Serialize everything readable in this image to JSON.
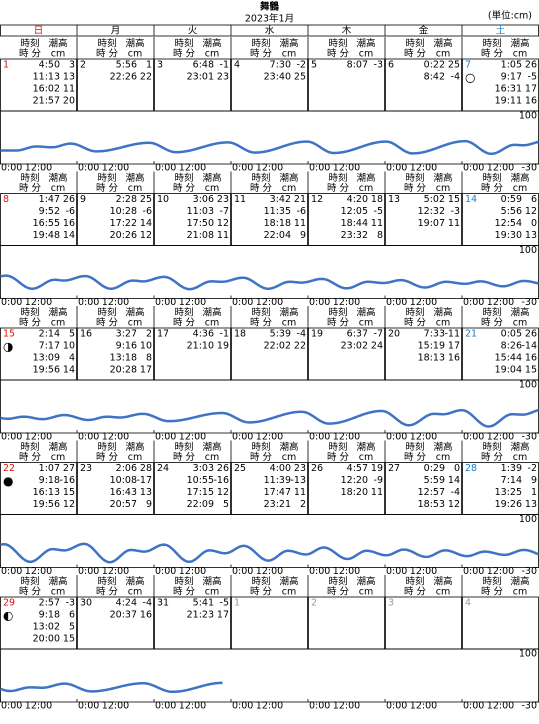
{
  "header": {
    "title": "舞鶴",
    "subtitle": "2023年1月",
    "unit": "(単位:cm)"
  },
  "weekdays": [
    "日",
    "月",
    "火",
    "水",
    "木",
    "金",
    "土"
  ],
  "labels": {
    "time": "時刻",
    "height": "潮高",
    "hm": "時 分",
    "cm": "cm"
  },
  "graph": {
    "ylim": [
      -30,
      100
    ],
    "yticks": [
      -30,
      100
    ],
    "xtick_labels": [
      "0:00",
      "12:00"
    ],
    "color": "#3f73c6"
  },
  "days": [
    {
      "day": 1,
      "moon": null,
      "tides": [
        {
          "time": "4:50",
          "height": 3
        },
        {
          "time": "11:13",
          "height": 13
        },
        {
          "time": "16:02",
          "height": 11
        },
        {
          "time": "21:57",
          "height": 20
        }
      ]
    },
    {
      "day": 2,
      "moon": null,
      "tides": [
        {
          "time": "5:56",
          "height": 1
        },
        {
          "time": "22:26",
          "height": 22
        }
      ]
    },
    {
      "day": 3,
      "moon": null,
      "tides": [
        {
          "time": "6:48",
          "height": -1
        },
        {
          "time": "23:01",
          "height": 23
        }
      ]
    },
    {
      "day": 4,
      "moon": null,
      "tides": [
        {
          "time": "7:30",
          "height": -2
        },
        {
          "time": "23:40",
          "height": 25
        }
      ]
    },
    {
      "day": 5,
      "moon": null,
      "tides": [
        {
          "time": "8:07",
          "height": -3
        }
      ]
    },
    {
      "day": 6,
      "moon": null,
      "tides": [
        {
          "time": "0:22",
          "height": 25
        },
        {
          "time": "8:42",
          "height": -4
        }
      ]
    },
    {
      "day": 7,
      "moon": "○",
      "tides": [
        {
          "time": "1:05",
          "height": 26
        },
        {
          "time": "9:17",
          "height": -5
        },
        {
          "time": "16:31",
          "height": 17
        },
        {
          "time": "19:11",
          "height": 16
        }
      ]
    },
    {
      "day": 8,
      "moon": null,
      "tides": [
        {
          "time": "1:47",
          "height": 26
        },
        {
          "time": "9:52",
          "height": -6
        },
        {
          "time": "16:55",
          "height": 16
        },
        {
          "time": "19:48",
          "height": 14
        }
      ]
    },
    {
      "day": 9,
      "moon": null,
      "tides": [
        {
          "time": "2:28",
          "height": 25
        },
        {
          "time": "10:28",
          "height": -6
        },
        {
          "time": "17:22",
          "height": 14
        },
        {
          "time": "20:26",
          "height": 12
        }
      ]
    },
    {
      "day": 10,
      "moon": null,
      "tides": [
        {
          "time": "3:06",
          "height": 23
        },
        {
          "time": "11:03",
          "height": -7
        },
        {
          "time": "17:50",
          "height": 12
        },
        {
          "time": "21:08",
          "height": 11
        }
      ]
    },
    {
      "day": 11,
      "moon": null,
      "tides": [
        {
          "time": "3:42",
          "height": 21
        },
        {
          "time": "11:35",
          "height": -6
        },
        {
          "time": "18:18",
          "height": 11
        },
        {
          "time": "22:04",
          "height": 9
        }
      ]
    },
    {
      "day": 12,
      "moon": null,
      "tides": [
        {
          "time": "4:20",
          "height": 18
        },
        {
          "time": "12:05",
          "height": -5
        },
        {
          "time": "18:44",
          "height": 11
        },
        {
          "time": "23:32",
          "height": 8
        }
      ]
    },
    {
      "day": 13,
      "moon": null,
      "tides": [
        {
          "time": "5:02",
          "height": 15
        },
        {
          "time": "12:32",
          "height": -3
        },
        {
          "time": "19:07",
          "height": 11
        }
      ]
    },
    {
      "day": 14,
      "moon": null,
      "tides": [
        {
          "time": "0:59",
          "height": 6
        },
        {
          "time": "5:56",
          "height": 12
        },
        {
          "time": "12:54",
          "height": 0
        },
        {
          "time": "19:30",
          "height": 13
        }
      ]
    },
    {
      "day": 15,
      "moon": "◑",
      "tides": [
        {
          "time": "2:14",
          "height": 5
        },
        {
          "time": "7:17",
          "height": 10
        },
        {
          "time": "13:09",
          "height": 4
        },
        {
          "time": "19:56",
          "height": 14
        }
      ]
    },
    {
      "day": 16,
      "moon": null,
      "tides": [
        {
          "time": "3:27",
          "height": 2
        },
        {
          "time": "9:16",
          "height": 10
        },
        {
          "time": "13:18",
          "height": 8
        },
        {
          "time": "20:28",
          "height": 17
        }
      ]
    },
    {
      "day": 17,
      "moon": null,
      "tides": [
        {
          "time": "4:36",
          "height": -1
        },
        {
          "time": "21:10",
          "height": 19
        }
      ]
    },
    {
      "day": 18,
      "moon": null,
      "tides": [
        {
          "time": "5:39",
          "height": -4
        },
        {
          "time": "22:02",
          "height": 22
        }
      ]
    },
    {
      "day": 19,
      "moon": null,
      "tides": [
        {
          "time": "6:37",
          "height": -7
        },
        {
          "time": "23:02",
          "height": 24
        }
      ]
    },
    {
      "day": 20,
      "moon": null,
      "tides": [
        {
          "time": "7:33",
          "height": -11
        },
        {
          "time": "15:19",
          "height": 17
        },
        {
          "time": "18:13",
          "height": 16
        }
      ]
    },
    {
      "day": 21,
      "moon": null,
      "tides": [
        {
          "time": "0:05",
          "height": 26
        },
        {
          "time": "8:26",
          "height": -14
        },
        {
          "time": "15:44",
          "height": 16
        },
        {
          "time": "19:04",
          "height": 15
        }
      ]
    },
    {
      "day": 22,
      "moon": "●",
      "tides": [
        {
          "time": "1:07",
          "height": 27
        },
        {
          "time": "9:18",
          "height": -16
        },
        {
          "time": "16:13",
          "height": 15
        },
        {
          "time": "19:56",
          "height": 12
        }
      ]
    },
    {
      "day": 23,
      "moon": null,
      "tides": [
        {
          "time": "2:06",
          "height": 28
        },
        {
          "time": "10:08",
          "height": -17
        },
        {
          "time": "16:43",
          "height": 13
        },
        {
          "time": "20:57",
          "height": 9
        }
      ]
    },
    {
      "day": 24,
      "moon": null,
      "tides": [
        {
          "time": "3:03",
          "height": 26
        },
        {
          "time": "10:55",
          "height": -16
        },
        {
          "time": "17:15",
          "height": 12
        },
        {
          "time": "22:09",
          "height": 5
        }
      ]
    },
    {
      "day": 25,
      "moon": null,
      "tides": [
        {
          "time": "4:00",
          "height": 23
        },
        {
          "time": "11:39",
          "height": -13
        },
        {
          "time": "17:47",
          "height": 11
        },
        {
          "time": "23:21",
          "height": 2
        }
      ]
    },
    {
      "day": 26,
      "moon": null,
      "tides": [
        {
          "time": "4:57",
          "height": 19
        },
        {
          "time": "12:20",
          "height": -9
        },
        {
          "time": "18:20",
          "height": 11
        }
      ]
    },
    {
      "day": 27,
      "moon": null,
      "tides": [
        {
          "time": "0:29",
          "height": 0
        },
        {
          "time": "5:59",
          "height": 14
        },
        {
          "time": "12:57",
          "height": -4
        },
        {
          "time": "18:53",
          "height": 12
        }
      ]
    },
    {
      "day": 28,
      "moon": null,
      "tides": [
        {
          "time": "1:39",
          "height": -2
        },
        {
          "time": "7:14",
          "height": 9
        },
        {
          "time": "13:25",
          "height": 1
        },
        {
          "time": "19:26",
          "height": 13
        }
      ]
    },
    {
      "day": 29,
      "moon": "◐",
      "tides": [
        {
          "time": "2:57",
          "height": -3
        },
        {
          "time": "9:18",
          "height": 6
        },
        {
          "time": "13:02",
          "height": 5
        },
        {
          "time": "20:00",
          "height": 15
        }
      ]
    },
    {
      "day": 30,
      "moon": null,
      "tides": [
        {
          "time": "4:24",
          "height": -4
        },
        {
          "time": "20:37",
          "height": 16
        }
      ]
    },
    {
      "day": 31,
      "moon": null,
      "tides": [
        {
          "time": "5:41",
          "height": -5
        },
        {
          "time": "21:23",
          "height": 17
        }
      ]
    }
  ],
  "next_month_days": [
    1,
    2,
    3,
    4
  ]
}
